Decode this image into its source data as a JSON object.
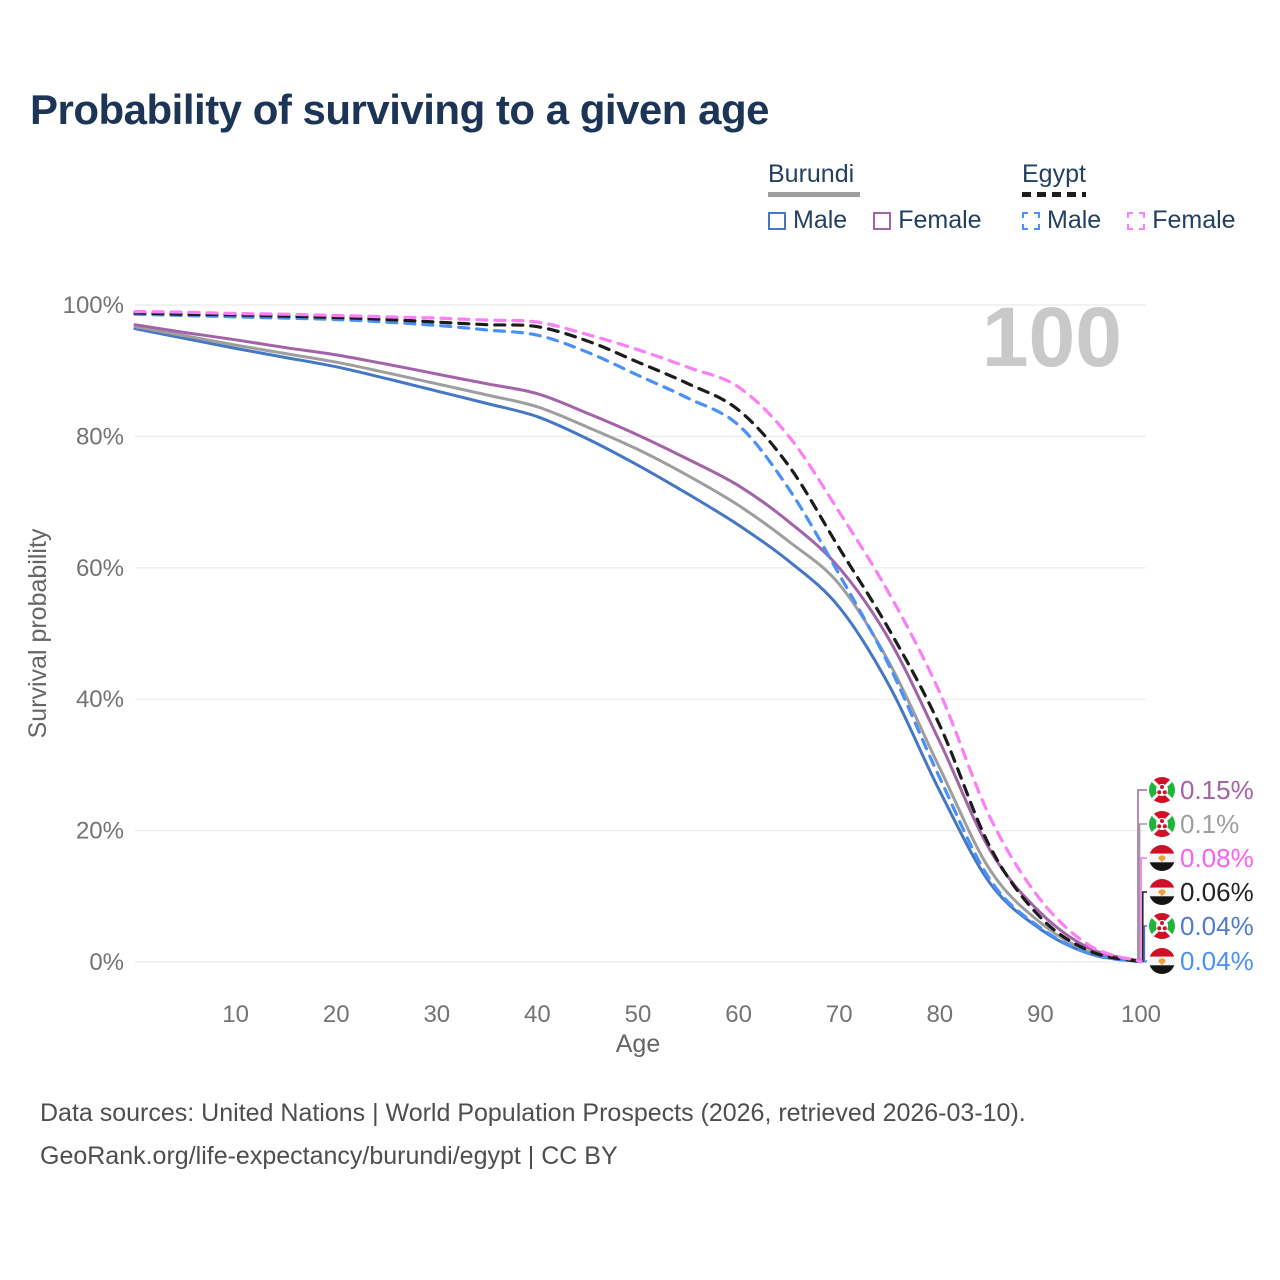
{
  "header": {
    "title": "Probability of surviving to a given age",
    "title_color": "#1c3556"
  },
  "watermark": {
    "text": "100",
    "color": "#c9c9c9"
  },
  "style": {
    "grid_color": "#ebebeb",
    "tick_color": "#737373",
    "axis_title_color": "#666666",
    "background": "#ffffff"
  },
  "legend": {
    "groups": [
      {
        "label": "Burundi",
        "underline_style": "solid",
        "underline_color": "#9e9e9e",
        "items": [
          {
            "label": "Male",
            "color": "#4477c4",
            "dash": false
          },
          {
            "label": "Female",
            "color": "#a263a8",
            "dash": false
          }
        ]
      },
      {
        "label": "Egypt",
        "underline_style": "dashed",
        "underline_color": "#1c1c1c",
        "items": [
          {
            "label": "Male",
            "color": "#4b90f5",
            "dash": true
          },
          {
            "label": "Female",
            "color": "#fb7ff5",
            "dash": true
          }
        ]
      }
    ]
  },
  "end_label_rows": [
    790,
    824,
    858,
    892,
    926,
    961
  ],
  "chart_data": {
    "type": "line",
    "title": "Probability of surviving to a given age",
    "xlabel": "Age",
    "ylabel": "Survival probability",
    "xlim": [
      0,
      100
    ],
    "ylim": [
      0,
      100
    ],
    "grid": "horizontal",
    "legend_position": "top-right",
    "x_ticks": [
      10,
      20,
      30,
      40,
      50,
      60,
      70,
      80,
      90,
      100
    ],
    "y_ticks": [
      0,
      20,
      40,
      60,
      80,
      100
    ],
    "y_tick_suffix": "%",
    "x": [
      0,
      5,
      10,
      15,
      20,
      25,
      30,
      35,
      40,
      45,
      50,
      55,
      60,
      65,
      70,
      75,
      80,
      85,
      90,
      95,
      100
    ],
    "series": [
      {
        "id": "burundi-male",
        "country": "Burundi",
        "sex": "Male",
        "color": "#4477c4",
        "dash": false,
        "values": [
          96.4,
          94.9,
          93.4,
          92.0,
          90.6,
          88.8,
          86.9,
          85.0,
          83.0,
          79.6,
          75.6,
          71.2,
          66.5,
          61.0,
          54.0,
          42.0,
          26.0,
          12.0,
          5.0,
          1.2,
          0.04
        ],
        "end": {
          "row": 4,
          "text": "0.04%",
          "label_color": "#4f7cd0",
          "flag": "burundi"
        }
      },
      {
        "id": "burundi-total",
        "country": "Burundi",
        "sex": "Both",
        "color": "#9e9e9e",
        "dash": false,
        "values": [
          96.7,
          95.3,
          93.9,
          92.6,
          91.3,
          89.7,
          88.0,
          86.3,
          84.5,
          81.4,
          78.0,
          74.0,
          69.5,
          64.0,
          57.5,
          45.5,
          29.5,
          14.0,
          6.0,
          1.5,
          0.1
        ],
        "end": {
          "row": 1,
          "text": "0.1%",
          "label_color": "#9e9e9e",
          "flag": "burundi"
        }
      },
      {
        "id": "burundi-female",
        "country": "Burundi",
        "sex": "Female",
        "color": "#a263a8",
        "dash": false,
        "values": [
          97.0,
          95.8,
          94.7,
          93.5,
          92.4,
          91.0,
          89.5,
          88.0,
          86.5,
          83.5,
          80.2,
          76.5,
          72.5,
          67.0,
          60.0,
          49.0,
          33.5,
          17.0,
          7.5,
          2.0,
          0.15
        ],
        "end": {
          "row": 0,
          "text": "0.15%",
          "label_color": "#a563a5",
          "flag": "burundi"
        }
      },
      {
        "id": "egypt-male",
        "country": "Egypt",
        "sex": "Male",
        "color": "#4b90f5",
        "dash": true,
        "values": [
          98.6,
          98.4,
          98.2,
          98.0,
          97.8,
          97.4,
          96.9,
          96.2,
          95.4,
          92.8,
          89.3,
          85.8,
          81.7,
          72.0,
          59.0,
          45.0,
          28.0,
          12.5,
          5.2,
          1.2,
          0.04
        ],
        "end": {
          "row": 5,
          "text": "0.04%",
          "label_color": "#4b90f5",
          "flag": "egypt"
        }
      },
      {
        "id": "egypt-total",
        "country": "Egypt",
        "sex": "Both",
        "color": "#1c1c1c",
        "dash": true,
        "values": [
          98.8,
          98.6,
          98.5,
          98.3,
          98.1,
          97.8,
          97.4,
          97.0,
          96.7,
          94.5,
          91.3,
          88.0,
          84.0,
          75.5,
          63.0,
          50.5,
          36.0,
          17.5,
          6.8,
          1.6,
          0.06
        ],
        "end": {
          "row": 3,
          "text": "0.06%",
          "label_color": "#222222",
          "flag": "egypt"
        }
      },
      {
        "id": "egypt-female",
        "country": "Egypt",
        "sex": "Female",
        "color": "#fb7ff5",
        "dash": true,
        "values": [
          99.0,
          98.9,
          98.7,
          98.6,
          98.4,
          98.2,
          98.0,
          97.7,
          97.4,
          95.5,
          93.2,
          90.5,
          87.5,
          80.0,
          68.5,
          56.0,
          41.0,
          22.0,
          9.5,
          2.4,
          0.08
        ],
        "end": {
          "row": 2,
          "text": "0.08%",
          "label_color": "#fb5ff0",
          "flag": "egypt"
        }
      }
    ]
  },
  "footer": {
    "lines": [
      "Data sources: United Nations | World Population Prospects (2026, retrieved 2026-03-10).",
      "GeoRank.org/life-expectancy/burundi/egypt | CC BY"
    ]
  }
}
